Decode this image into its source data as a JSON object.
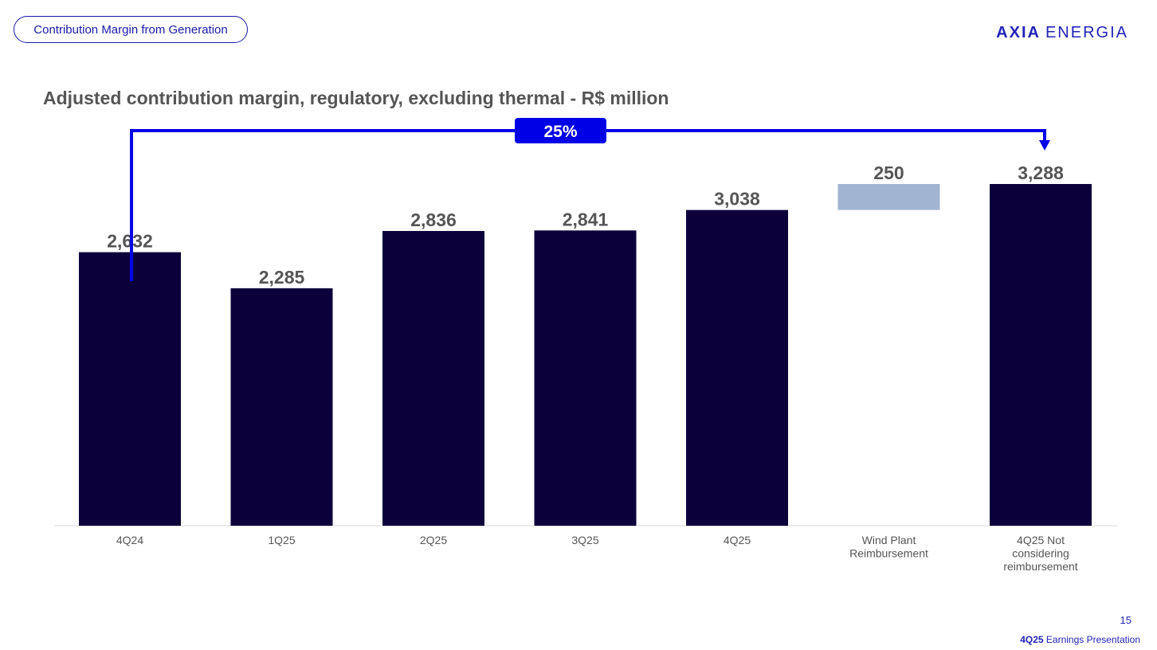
{
  "header": {
    "section_pill": "Contribution Margin from Generation",
    "logo_part1": "AXIA",
    "logo_part2": "ENERGIA"
  },
  "colors": {
    "bar": "#0b003a",
    "reimbursement_bar": "#a1b4d1",
    "accent": "#0000e6",
    "label": "#555555"
  },
  "chart_data": {
    "type": "bar",
    "title": "Adjusted contribution margin, regulatory, excluding thermal - R$ million",
    "categories": [
      "4Q24",
      "1Q25",
      "2Q25",
      "3Q25",
      "4Q25",
      "Wind Plant Reimbursement",
      "4Q25 Not considering reimbursement"
    ],
    "category_lines": [
      [
        "4Q24"
      ],
      [
        "1Q25"
      ],
      [
        "2Q25"
      ],
      [
        "3Q25"
      ],
      [
        "4Q25"
      ],
      [
        "Wind Plant",
        "Reimbursement"
      ],
      [
        "4Q25 Not",
        "considering",
        "reimbursement"
      ]
    ],
    "values": [
      2632,
      2285,
      2836,
      2841,
      3038,
      250,
      3288
    ],
    "value_labels": [
      "2,632",
      "2,285",
      "2,836",
      "2,841",
      "3,038",
      "250",
      "3,288"
    ],
    "bar_kinds": [
      "total",
      "total",
      "total",
      "total",
      "total",
      "delta",
      "total"
    ],
    "delta_base": 3038,
    "growth_annotation": {
      "label": "25%",
      "from": "4Q24",
      "to": "4Q25 Not considering reimbursement"
    },
    "ylim": [
      0,
      3288
    ],
    "xlabel": "",
    "ylabel": ""
  },
  "footer": {
    "page_number": "15",
    "presentation_bold": "4Q25",
    "presentation_rest": "Earnings Presentation"
  }
}
